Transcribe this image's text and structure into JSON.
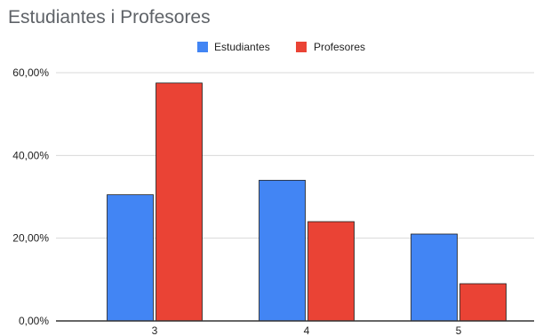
{
  "chart_data": {
    "type": "bar",
    "title": "Estudiantes i Profesores",
    "xlabel": "",
    "ylabel": "",
    "categories": [
      "3",
      "4",
      "5"
    ],
    "series": [
      {
        "name": "Estudiantes",
        "color": "#4285f4",
        "values": [
          30.5,
          34.0,
          21.0
        ]
      },
      {
        "name": "Profesores",
        "color": "#ea4335",
        "values": [
          57.5,
          24.0,
          9.0
        ]
      }
    ],
    "ylim": [
      0,
      60
    ],
    "yticks": [
      0,
      20,
      40,
      60
    ],
    "ytick_labels": [
      "0,00%",
      "20,00%",
      "40,00%",
      "60,00%"
    ],
    "grid": true,
    "legend_position": "top-center"
  }
}
